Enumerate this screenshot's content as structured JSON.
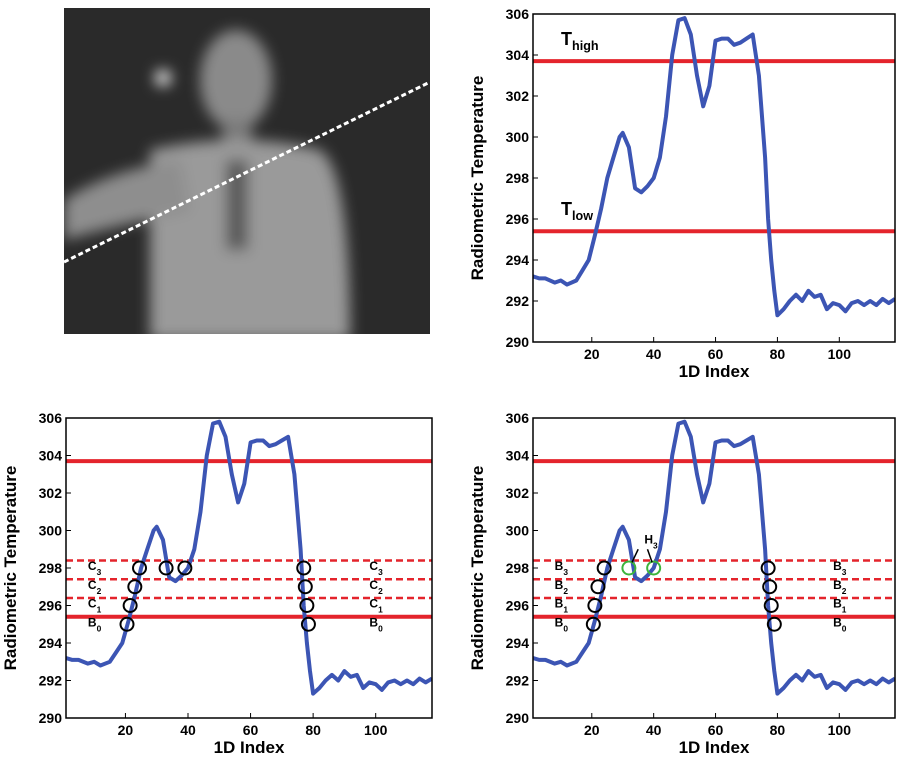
{
  "chart_data": [
    {
      "type": "line",
      "x": [
        1,
        3,
        5,
        8,
        10,
        12,
        15,
        17,
        19,
        21,
        23,
        25,
        27,
        29,
        30,
        32,
        34,
        36,
        38,
        40,
        42,
        44,
        46,
        48,
        50,
        52,
        54,
        56,
        58,
        60,
        62,
        64,
        66,
        68,
        70,
        72,
        74,
        76,
        77,
        78,
        79,
        80,
        82,
        84,
        86,
        88,
        90,
        92,
        94,
        96,
        98,
        100,
        102,
        104,
        106,
        108,
        110,
        112,
        114,
        116,
        118
      ],
      "series": [
        {
          "color": "#3c55b4",
          "values": [
            293.2,
            293.1,
            293.1,
            292.9,
            293.0,
            292.8,
            293.0,
            293.5,
            294.0,
            295.2,
            296.5,
            298.0,
            299.0,
            300.0,
            300.2,
            299.5,
            297.5,
            297.3,
            297.6,
            298.0,
            299.0,
            301.0,
            304.0,
            305.7,
            305.8,
            305.0,
            303.0,
            301.5,
            302.5,
            304.7,
            304.8,
            304.8,
            304.5,
            304.6,
            304.8,
            305.0,
            303.0,
            299.0,
            296.0,
            294.0,
            292.5,
            291.3,
            291.6,
            292.0,
            292.3,
            292.0,
            292.5,
            292.2,
            292.3,
            291.6,
            291.9,
            291.8,
            291.5,
            291.9,
            292.0,
            291.8,
            292.0,
            291.8,
            292.1,
            291.9,
            292.1
          ]
        }
      ],
      "xlim": [
        1,
        118
      ],
      "ylim": [
        290,
        306
      ],
      "xticks": [
        20,
        40,
        60,
        80,
        100
      ],
      "yticks": [
        290,
        292,
        294,
        296,
        298,
        300,
        302,
        304,
        306
      ],
      "xlabel": "1D Index",
      "ylabel": "Radiometric Temperature",
      "hlines": [
        {
          "value": 303.7,
          "color": "#e4242c",
          "style": "solid"
        },
        {
          "value": 295.4,
          "color": "#e4242c",
          "style": "solid"
        }
      ],
      "annotations": [
        {
          "text": "T",
          "sub": "high"
        },
        {
          "text": "T",
          "sub": "low"
        }
      ]
    },
    {
      "type": "line",
      "x": [
        1,
        3,
        5,
        8,
        10,
        12,
        15,
        17,
        19,
        21,
        23,
        25,
        27,
        29,
        30,
        32,
        34,
        36,
        38,
        40,
        42,
        44,
        46,
        48,
        50,
        52,
        54,
        56,
        58,
        60,
        62,
        64,
        66,
        68,
        70,
        72,
        74,
        76,
        77,
        78,
        79,
        80,
        82,
        84,
        86,
        88,
        90,
        92,
        94,
        96,
        98,
        100,
        102,
        104,
        106,
        108,
        110,
        112,
        114,
        116,
        118
      ],
      "series": [
        {
          "color": "#3c55b4",
          "values": [
            293.2,
            293.1,
            293.1,
            292.9,
            293.0,
            292.8,
            293.0,
            293.5,
            294.0,
            295.2,
            296.5,
            298.0,
            299.0,
            300.0,
            300.2,
            299.5,
            297.5,
            297.3,
            297.6,
            298.0,
            299.0,
            301.0,
            304.0,
            305.7,
            305.8,
            305.0,
            303.0,
            301.5,
            302.5,
            304.7,
            304.8,
            304.8,
            304.5,
            304.6,
            304.8,
            305.0,
            303.0,
            299.0,
            296.0,
            294.0,
            292.5,
            291.3,
            291.6,
            292.0,
            292.3,
            292.0,
            292.5,
            292.2,
            292.3,
            291.6,
            291.9,
            291.8,
            291.5,
            291.9,
            292.0,
            291.8,
            292.0,
            291.8,
            292.1,
            291.9,
            292.1
          ]
        }
      ],
      "xlim": [
        1,
        118
      ],
      "ylim": [
        290,
        306
      ],
      "xticks": [
        20,
        40,
        60,
        80,
        100
      ],
      "yticks": [
        290,
        292,
        294,
        296,
        298,
        300,
        302,
        304,
        306
      ],
      "xlabel": "1D Index",
      "ylabel": "Radiometric Temperature",
      "hlines": [
        {
          "value": 303.7,
          "color": "#e4242c",
          "style": "solid"
        },
        {
          "value": 295.4,
          "color": "#e4242c",
          "style": "solid"
        },
        {
          "value": 298.4,
          "color": "#e4242c",
          "style": "dashed"
        },
        {
          "value": 297.4,
          "color": "#e4242c",
          "style": "dashed"
        },
        {
          "value": 296.4,
          "color": "#e4242c",
          "style": "dashed"
        }
      ],
      "markers": [
        {
          "color": "#000000",
          "x": [
            20.5,
            21.5,
            23,
            24.5,
            33,
            39,
            77,
            77.5,
            78,
            78.5
          ],
          "y": [
            295,
            296,
            297,
            298,
            298,
            298,
            298,
            297,
            296,
            295
          ]
        }
      ],
      "level_labels": [
        {
          "text": "C",
          "sub": "3"
        },
        {
          "text": "C",
          "sub": "2"
        },
        {
          "text": "C",
          "sub": "1"
        },
        {
          "text": "B",
          "sub": "0"
        }
      ]
    },
    {
      "type": "line",
      "x": [
        1,
        3,
        5,
        8,
        10,
        12,
        15,
        17,
        19,
        21,
        23,
        25,
        27,
        29,
        30,
        32,
        34,
        36,
        38,
        40,
        42,
        44,
        46,
        48,
        50,
        52,
        54,
        56,
        58,
        60,
        62,
        64,
        66,
        68,
        70,
        72,
        74,
        76,
        77,
        78,
        79,
        80,
        82,
        84,
        86,
        88,
        90,
        92,
        94,
        96,
        98,
        100,
        102,
        104,
        106,
        108,
        110,
        112,
        114,
        116,
        118
      ],
      "series": [
        {
          "color": "#3c55b4",
          "values": [
            293.2,
            293.1,
            293.1,
            292.9,
            293.0,
            292.8,
            293.0,
            293.5,
            294.0,
            295.2,
            296.5,
            298.0,
            299.0,
            300.0,
            300.2,
            299.5,
            297.5,
            297.3,
            297.6,
            298.0,
            299.0,
            301.0,
            304.0,
            305.7,
            305.8,
            305.0,
            303.0,
            301.5,
            302.5,
            304.7,
            304.8,
            304.8,
            304.5,
            304.6,
            304.8,
            305.0,
            303.0,
            299.0,
            296.0,
            294.0,
            292.5,
            291.3,
            291.6,
            292.0,
            292.3,
            292.0,
            292.5,
            292.2,
            292.3,
            291.6,
            291.9,
            291.8,
            291.5,
            291.9,
            292.0,
            291.8,
            292.0,
            291.8,
            292.1,
            291.9,
            292.1
          ]
        }
      ],
      "xlim": [
        1,
        118
      ],
      "ylim": [
        290,
        306
      ],
      "xticks": [
        20,
        40,
        60,
        80,
        100
      ],
      "yticks": [
        290,
        292,
        294,
        296,
        298,
        300,
        302,
        304,
        306
      ],
      "xlabel": "1D Index",
      "ylabel": "Radiometric Temperature",
      "hlines": [
        {
          "value": 303.7,
          "color": "#e4242c",
          "style": "solid"
        },
        {
          "value": 295.4,
          "color": "#e4242c",
          "style": "solid"
        },
        {
          "value": 298.4,
          "color": "#e4242c",
          "style": "dashed"
        },
        {
          "value": 297.4,
          "color": "#e4242c",
          "style": "dashed"
        },
        {
          "value": 296.4,
          "color": "#e4242c",
          "style": "dashed"
        }
      ],
      "markers": [
        {
          "color": "#000000",
          "x": [
            20.5,
            21,
            22,
            24,
            77,
            77.5,
            78,
            79
          ],
          "y": [
            295,
            296,
            297,
            298,
            298,
            297,
            296,
            295
          ]
        },
        {
          "color": "#3cb43c",
          "x": [
            32,
            40
          ],
          "y": [
            298,
            298
          ]
        }
      ],
      "level_labels": [
        {
          "text": "B",
          "sub": "3"
        },
        {
          "text": "B",
          "sub": "2"
        },
        {
          "text": "B",
          "sub": "1"
        },
        {
          "text": "B",
          "sub": "0"
        }
      ],
      "annotations": [
        {
          "text": "H",
          "sub": "3"
        }
      ]
    }
  ]
}
